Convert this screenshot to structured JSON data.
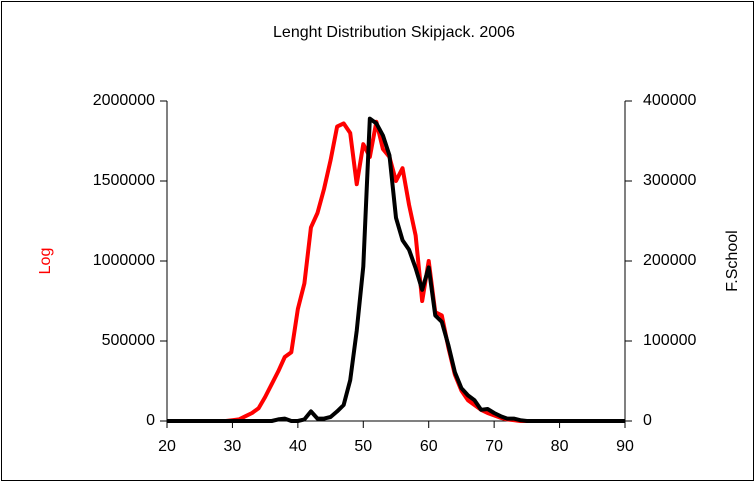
{
  "chart_data": {
    "type": "line",
    "title": "Lenght Distribution Skipjack. 2006",
    "y_label": "Log",
    "y2_label": "F.School",
    "x": [
      20,
      21,
      22,
      23,
      24,
      25,
      26,
      27,
      28,
      29,
      30,
      31,
      32,
      33,
      34,
      35,
      36,
      37,
      38,
      39,
      40,
      41,
      42,
      43,
      44,
      45,
      46,
      47,
      48,
      49,
      50,
      51,
      52,
      53,
      54,
      55,
      56,
      57,
      58,
      59,
      60,
      61,
      62,
      63,
      64,
      65,
      66,
      67,
      68,
      69,
      70,
      71,
      72,
      73,
      74,
      75,
      76,
      77,
      78,
      79,
      80,
      81,
      82,
      83,
      84,
      85,
      86,
      87,
      88,
      89,
      90
    ],
    "series": [
      {
        "name": "Log",
        "color": "#ff0000",
        "values": [
          0,
          0,
          0,
          0,
          0,
          0,
          0,
          0,
          0,
          0,
          5000,
          10000,
          30000,
          50000,
          80000,
          150000,
          230000,
          310000,
          400000,
          430000,
          700000,
          860000,
          1210000,
          1300000,
          1450000,
          1630000,
          1840000,
          1860000,
          1800000,
          1480000,
          1730000,
          1650000,
          1870000,
          1700000,
          1650000,
          1500000,
          1580000,
          1350000,
          1160000,
          750000,
          1000000,
          680000,
          660000,
          460000,
          290000,
          190000,
          130000,
          100000,
          70000,
          50000,
          35000,
          20000,
          10000,
          5000,
          0,
          0,
          0,
          0,
          0,
          0,
          0,
          0,
          0,
          0,
          0,
          0,
          0,
          0,
          0,
          0,
          0
        ]
      },
      {
        "name": "F.School",
        "color": "#000000",
        "axis": "y2",
        "values": [
          0,
          0,
          0,
          0,
          0,
          0,
          0,
          0,
          0,
          0,
          0,
          0,
          0,
          0,
          0,
          0,
          0,
          2000,
          3000,
          0,
          0,
          2000,
          12000,
          3000,
          3000,
          5000,
          12000,
          20000,
          51000,
          113000,
          193000,
          378000,
          372000,
          357000,
          332000,
          254000,
          226000,
          214000,
          191000,
          164000,
          192000,
          132000,
          124000,
          95000,
          61000,
          41000,
          32000,
          26000,
          14000,
          15000,
          10000,
          6000,
          3000,
          3000,
          1000,
          0,
          0,
          0,
          0,
          0,
          0,
          0,
          0,
          0,
          0,
          0,
          0,
          0,
          0,
          0,
          0
        ]
      }
    ],
    "xlim": [
      20,
      90
    ],
    "xticks": [
      20,
      30,
      40,
      50,
      60,
      70,
      80,
      90
    ],
    "ylim": [
      0,
      2000000
    ],
    "yticks": [
      0,
      500000,
      1000000,
      1500000,
      2000000
    ],
    "y2lim": [
      0,
      400000
    ],
    "y2ticks": [
      0,
      100000,
      200000,
      300000,
      400000
    ]
  }
}
